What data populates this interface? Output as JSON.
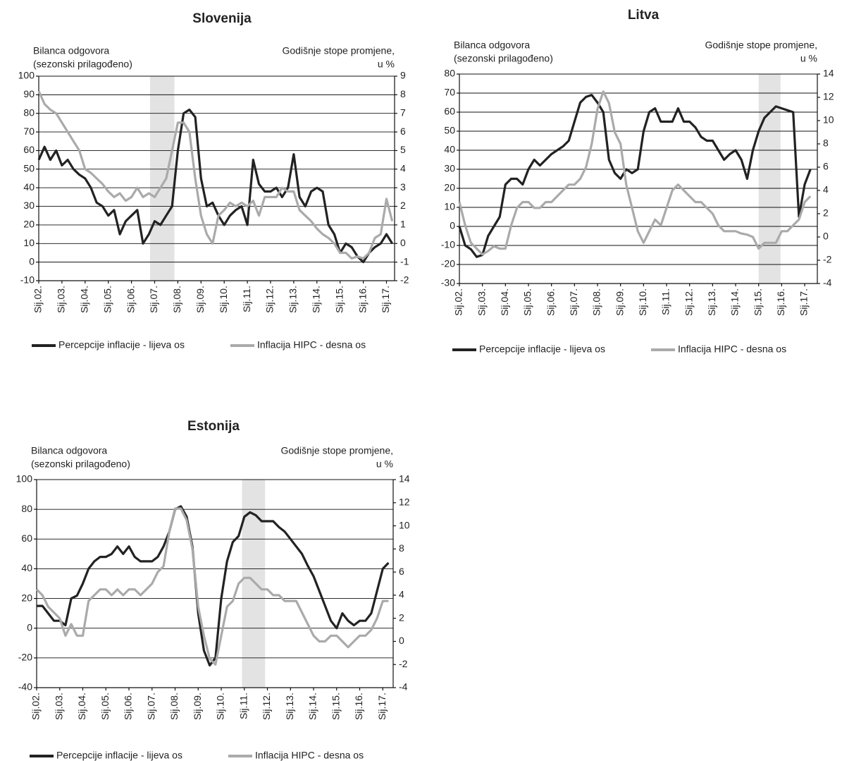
{
  "chart_data": [
    {
      "type": "line",
      "title": "Slovenija",
      "y_label": [
        "Bilanca odgovora",
        "(sezonski prilagođeno)"
      ],
      "y2_label": [
        "Godišnje stope promjene,",
        "u %"
      ],
      "x": [
        2002,
        2002.25,
        2002.5,
        2002.75,
        2003,
        2003.25,
        2003.5,
        2003.75,
        2004,
        2004.25,
        2004.5,
        2004.75,
        2005,
        2005.25,
        2005.5,
        2005.75,
        2006,
        2006.25,
        2006.5,
        2006.75,
        2007,
        2007.25,
        2007.5,
        2007.75,
        2008,
        2008.25,
        2008.5,
        2008.75,
        2009,
        2009.25,
        2009.5,
        2009.75,
        2010,
        2010.25,
        2010.5,
        2010.75,
        2011,
        2011.25,
        2011.5,
        2011.75,
        2012,
        2012.25,
        2012.5,
        2012.75,
        2013,
        2013.25,
        2013.5,
        2013.75,
        2014,
        2014.25,
        2014.5,
        2014.75,
        2015,
        2015.25,
        2015.5,
        2015.75,
        2016,
        2016.25,
        2016.5,
        2016.75,
        2017,
        2017.25
      ],
      "xlim": [
        2002,
        2017.35
      ],
      "xticks": [
        {
          "value": 2002,
          "label": "Sij.02."
        },
        {
          "value": 2003,
          "label": "Sij.03."
        },
        {
          "value": 2004,
          "label": "Sij.04."
        },
        {
          "value": 2005,
          "label": "Sij.05."
        },
        {
          "value": 2006,
          "label": "Sij.06."
        },
        {
          "value": 2007,
          "label": "Sij.07."
        },
        {
          "value": 2008,
          "label": "Sij.08."
        },
        {
          "value": 2009,
          "label": "Sij.09."
        },
        {
          "value": 2010,
          "label": "Sij.10."
        },
        {
          "value": 2011,
          "label": "Sij.11."
        },
        {
          "value": 2012,
          "label": "Sij.12."
        },
        {
          "value": 2013,
          "label": "Sij.13."
        },
        {
          "value": 2014,
          "label": "Sij.14."
        },
        {
          "value": 2015,
          "label": "Sij.15."
        },
        {
          "value": 2016,
          "label": "Sij.16."
        },
        {
          "value": 2017,
          "label": "Sij.17."
        }
      ],
      "ylim": [
        -10,
        100
      ],
      "yticks": [
        -10,
        0,
        10,
        20,
        30,
        40,
        50,
        60,
        70,
        80,
        90,
        100
      ],
      "y2lim": [
        -2,
        9
      ],
      "y2ticks": [
        -2,
        -1,
        0,
        1,
        2,
        3,
        4,
        5,
        6,
        7,
        8,
        9
      ],
      "shade": [
        2006.8,
        2007.85
      ],
      "grid": true,
      "series": [
        {
          "name": "Percepcije inflacije - lijeva os",
          "color": "#222222",
          "values": [
            55,
            62,
            55,
            60,
            52,
            55,
            50,
            47,
            45,
            40,
            32,
            30,
            25,
            28,
            15,
            22,
            25,
            28,
            10,
            15,
            22,
            20,
            25,
            30,
            60,
            80,
            82,
            78,
            45,
            30,
            32,
            25,
            20,
            25,
            28,
            30,
            20,
            55,
            42,
            38,
            38,
            40,
            35,
            40,
            58,
            35,
            30,
            38,
            40,
            38,
            20,
            15,
            5,
            10,
            8,
            3,
            0,
            5,
            8,
            10,
            15,
            10
          ]
        },
        {
          "name": "Inflacija HIPC - desna os",
          "color": "#aaaaaa",
          "axis": "y2",
          "values": [
            8.2,
            7.5,
            7.2,
            7.0,
            6.5,
            6.0,
            5.5,
            5.0,
            4.0,
            3.8,
            3.5,
            3.2,
            2.8,
            2.5,
            2.7,
            2.3,
            2.5,
            3.0,
            2.5,
            2.7,
            2.5,
            3.0,
            3.5,
            5.0,
            6.5,
            6.5,
            6.0,
            3.5,
            1.5,
            0.5,
            0.0,
            1.5,
            1.8,
            2.2,
            2.0,
            2.2,
            2.0,
            2.3,
            1.5,
            2.5,
            2.5,
            2.5,
            3.0,
            2.8,
            2.8,
            1.8,
            1.5,
            1.2,
            0.8,
            0.5,
            0.3,
            0.0,
            -0.5,
            -0.5,
            -0.8,
            -0.7,
            -0.8,
            -0.5,
            0.3,
            0.5,
            2.4,
            1.2
          ]
        }
      ]
    },
    {
      "type": "line",
      "title": "Litva",
      "y_label": [
        "Bilanca odgovora",
        "(sezonski prilagođeno)"
      ],
      "y2_label": [
        "Godišnje stope promjene,",
        "u %"
      ],
      "x": [
        2002,
        2002.25,
        2002.5,
        2002.75,
        2003,
        2003.25,
        2003.5,
        2003.75,
        2004,
        2004.25,
        2004.5,
        2004.75,
        2005,
        2005.25,
        2005.5,
        2005.75,
        2006,
        2006.25,
        2006.5,
        2006.75,
        2007,
        2007.25,
        2007.5,
        2007.75,
        2008,
        2008.25,
        2008.5,
        2008.75,
        2009,
        2009.25,
        2009.5,
        2009.75,
        2010,
        2010.25,
        2010.5,
        2010.75,
        2011,
        2011.25,
        2011.5,
        2011.75,
        2012,
        2012.25,
        2012.5,
        2012.75,
        2013,
        2013.25,
        2013.5,
        2013.75,
        2014,
        2014.25,
        2014.5,
        2014.75,
        2015,
        2015.25,
        2015.5,
        2015.75,
        2016,
        2016.25,
        2016.5,
        2016.75,
        2017,
        2017.25
      ],
      "xlim": [
        2002,
        2017.55
      ],
      "xticks": [
        {
          "value": 2002,
          "label": "Sij.02."
        },
        {
          "value": 2003,
          "label": "Sij.03."
        },
        {
          "value": 2004,
          "label": "Sij.04."
        },
        {
          "value": 2005,
          "label": "Sij.05."
        },
        {
          "value": 2006,
          "label": "Sij.06."
        },
        {
          "value": 2007,
          "label": "Sij.07."
        },
        {
          "value": 2008,
          "label": "Sij.08."
        },
        {
          "value": 2009,
          "label": "Sij.09."
        },
        {
          "value": 2010,
          "label": "Sij.10."
        },
        {
          "value": 2011,
          "label": "Sij.11."
        },
        {
          "value": 2012,
          "label": "Sij.12."
        },
        {
          "value": 2013,
          "label": "Sij.13."
        },
        {
          "value": 2014,
          "label": "Sij.14."
        },
        {
          "value": 2015,
          "label": "Sij.15."
        },
        {
          "value": 2016,
          "label": "Sij.16."
        },
        {
          "value": 2017,
          "label": "Sij.17."
        }
      ],
      "ylim": [
        -30,
        80
      ],
      "yticks": [
        -30,
        -20,
        -10,
        0,
        10,
        20,
        30,
        40,
        50,
        60,
        70,
        80
      ],
      "y2lim": [
        -4,
        14
      ],
      "y2ticks": [
        -4,
        -2,
        0,
        2,
        4,
        6,
        8,
        10,
        12,
        14
      ],
      "shade": [
        2015.0,
        2015.95
      ],
      "grid": true,
      "series": [
        {
          "name": "Percepcije inflacije - lijeva os",
          "color": "#222222",
          "values": [
            0,
            -10,
            -12,
            -16,
            -15,
            -5,
            0,
            5,
            22,
            25,
            25,
            22,
            30,
            35,
            32,
            35,
            38,
            40,
            42,
            45,
            55,
            65,
            68,
            69,
            65,
            60,
            35,
            28,
            25,
            30,
            28,
            30,
            50,
            60,
            62,
            55,
            55,
            55,
            62,
            55,
            55,
            52,
            47,
            45,
            45,
            40,
            35,
            38,
            40,
            35,
            25,
            40,
            50,
            57,
            60,
            63,
            62,
            61,
            60,
            5,
            22,
            30
          ]
        },
        {
          "name": "Inflacija HIPC - desna os",
          "color": "#aaaaaa",
          "axis": "y2",
          "values": [
            3.0,
            1.0,
            -0.5,
            -1.0,
            -1.5,
            -1.2,
            -0.8,
            -1.0,
            -1.0,
            1.0,
            2.5,
            3.0,
            3.0,
            2.5,
            2.5,
            3.0,
            3.0,
            3.5,
            4.0,
            4.5,
            4.5,
            5.0,
            6.0,
            8.0,
            11.0,
            12.5,
            11.5,
            9.0,
            8.0,
            4.5,
            2.5,
            0.5,
            -0.5,
            0.5,
            1.5,
            1.0,
            2.5,
            4.0,
            4.5,
            4.0,
            3.5,
            3.0,
            3.0,
            2.5,
            2.0,
            1.0,
            0.5,
            0.5,
            0.5,
            0.3,
            0.2,
            0.0,
            -1.0,
            -0.5,
            -0.5,
            -0.5,
            0.5,
            0.5,
            1.0,
            1.5,
            3.0,
            3.5
          ]
        }
      ]
    },
    {
      "type": "line",
      "title": "Estonija",
      "y_label": [
        "Bilanca odgovora",
        "(sezonski prilagođeno)"
      ],
      "y2_label": [
        "Godišnje stope promjene,",
        "u %"
      ],
      "x": [
        2002,
        2002.25,
        2002.5,
        2002.75,
        2003,
        2003.25,
        2003.5,
        2003.75,
        2004,
        2004.25,
        2004.5,
        2004.75,
        2005,
        2005.25,
        2005.5,
        2005.75,
        2006,
        2006.25,
        2006.5,
        2006.75,
        2007,
        2007.25,
        2007.5,
        2007.75,
        2008,
        2008.25,
        2008.5,
        2008.75,
        2009,
        2009.25,
        2009.5,
        2009.75,
        2010,
        2010.25,
        2010.5,
        2010.75,
        2011,
        2011.25,
        2011.5,
        2011.75,
        2012,
        2012.25,
        2012.5,
        2012.75,
        2013,
        2013.25,
        2013.5,
        2013.75,
        2014,
        2014.25,
        2014.5,
        2014.75,
        2015,
        2015.25,
        2015.5,
        2015.75,
        2016,
        2016.25,
        2016.5,
        2016.75,
        2017,
        2017.25
      ],
      "xlim": [
        2002,
        2017.45
      ],
      "xticks": [
        {
          "value": 2002,
          "label": "Sij.02."
        },
        {
          "value": 2003,
          "label": "Sij.03."
        },
        {
          "value": 2004,
          "label": "Sij.04."
        },
        {
          "value": 2005,
          "label": "Sij.05."
        },
        {
          "value": 2006,
          "label": "Sij.06."
        },
        {
          "value": 2007,
          "label": "Sij.07."
        },
        {
          "value": 2008,
          "label": "Sij.08."
        },
        {
          "value": 2009,
          "label": "Sij.09."
        },
        {
          "value": 2010,
          "label": "Sij.10."
        },
        {
          "value": 2011,
          "label": "Sij.11."
        },
        {
          "value": 2012,
          "label": "Sij.12."
        },
        {
          "value": 2013,
          "label": "Sij.13."
        },
        {
          "value": 2014,
          "label": "Sij.14."
        },
        {
          "value": 2015,
          "label": "Sij.15."
        },
        {
          "value": 2016,
          "label": "Sij.16."
        },
        {
          "value": 2017,
          "label": "Sij.17."
        }
      ],
      "ylim": [
        -40,
        100
      ],
      "yticks": [
        -40,
        -20,
        0,
        20,
        40,
        60,
        80,
        100
      ],
      "y2lim": [
        -4,
        14
      ],
      "y2ticks": [
        -4,
        -2,
        0,
        2,
        4,
        6,
        8,
        10,
        12,
        14
      ],
      "shade": [
        2010.9,
        2011.9
      ],
      "grid": true,
      "series": [
        {
          "name": "Percepcije inflacije - lijeva os",
          "color": "#222222",
          "values": [
            15,
            15,
            10,
            5,
            5,
            2,
            20,
            22,
            30,
            40,
            45,
            48,
            48,
            50,
            55,
            50,
            55,
            48,
            45,
            45,
            45,
            48,
            55,
            65,
            80,
            82,
            75,
            55,
            10,
            -15,
            -25,
            -20,
            20,
            45,
            58,
            62,
            75,
            78,
            76,
            72,
            72,
            72,
            68,
            65,
            60,
            55,
            50,
            42,
            35,
            25,
            15,
            5,
            0,
            10,
            5,
            2,
            5,
            5,
            10,
            25,
            40,
            44
          ]
        },
        {
          "name": "Inflacija HIPC - desna os",
          "color": "#aaaaaa",
          "axis": "y2",
          "values": [
            4.5,
            4.0,
            3.0,
            2.5,
            2.0,
            0.5,
            1.5,
            0.5,
            0.5,
            3.5,
            4.0,
            4.5,
            4.5,
            4.0,
            4.5,
            4.0,
            4.5,
            4.5,
            4.0,
            4.5,
            5.0,
            6.0,
            6.5,
            9.5,
            11.5,
            11.5,
            10.5,
            8.0,
            3.0,
            0.5,
            -1.5,
            -2.0,
            0.5,
            3.0,
            3.5,
            5.0,
            5.5,
            5.5,
            5.0,
            4.5,
            4.5,
            4.0,
            4.0,
            3.5,
            3.5,
            3.5,
            2.5,
            1.5,
            0.5,
            0.0,
            0.0,
            0.5,
            0.5,
            0.0,
            -0.5,
            0.0,
            0.5,
            0.5,
            1.0,
            2.0,
            3.5,
            3.5
          ]
        }
      ]
    }
  ]
}
